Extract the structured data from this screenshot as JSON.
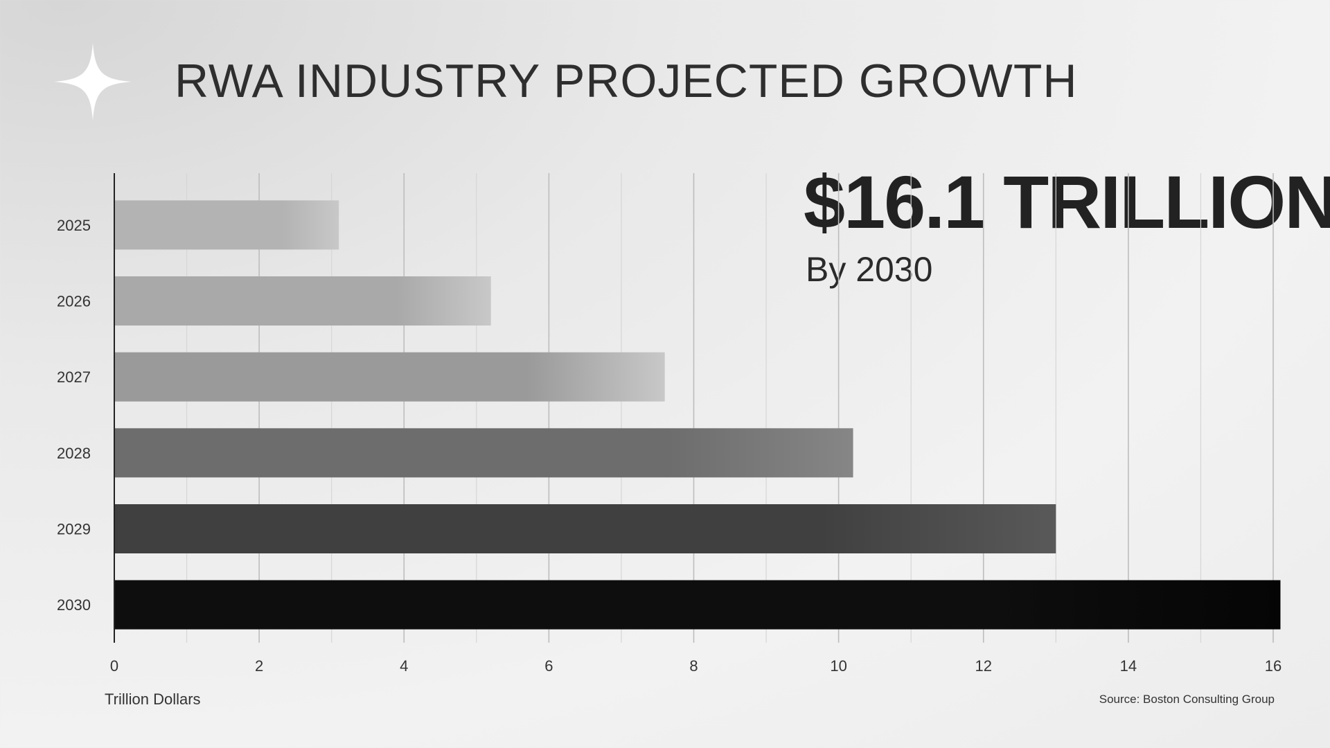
{
  "header": {
    "title": "RWA INDUSTRY PROJECTED GROWTH"
  },
  "callout": {
    "value": "$16.1 TRILLION",
    "subtitle": "By 2030"
  },
  "source": "Source: Boston Consulting Group",
  "logo": {
    "icon": "four-point-star-icon"
  },
  "chart_data": {
    "type": "bar",
    "orientation": "horizontal",
    "categories": [
      "2025",
      "2026",
      "2027",
      "2028",
      "2029",
      "2030"
    ],
    "values": [
      3.1,
      5.2,
      7.6,
      10.2,
      13.0,
      16.1
    ],
    "colors": [
      "#b3b3b3",
      "#a9a9a9",
      "#9a9a9a",
      "#6d6d6d",
      "#404040",
      "#0e0e0e"
    ],
    "xlim": [
      0,
      16
    ],
    "xticks": [
      0,
      2,
      4,
      6,
      8,
      10,
      12,
      14,
      16
    ],
    "xlabel": "Trillion Dollars",
    "ylabel": "",
    "grid": true
  }
}
